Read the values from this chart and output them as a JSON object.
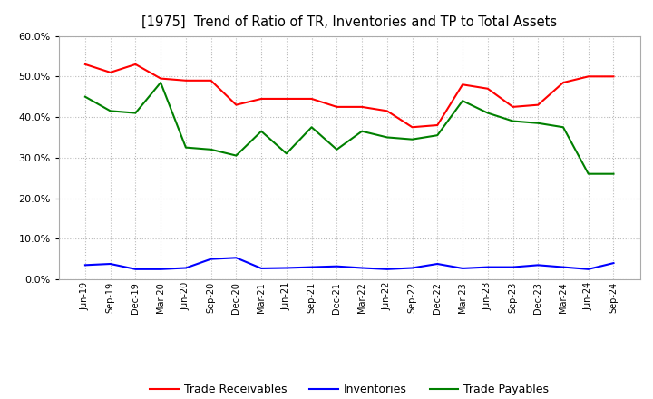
{
  "title": "[1975]  Trend of Ratio of TR, Inventories and TP to Total Assets",
  "x_labels": [
    "Jun-19",
    "Sep-19",
    "Dec-19",
    "Mar-20",
    "Jun-20",
    "Sep-20",
    "Dec-20",
    "Mar-21",
    "Jun-21",
    "Sep-21",
    "Dec-21",
    "Mar-22",
    "Jun-22",
    "Sep-22",
    "Dec-22",
    "Mar-23",
    "Jun-23",
    "Sep-23",
    "Dec-23",
    "Mar-24",
    "Jun-24",
    "Sep-24"
  ],
  "trade_receivables": [
    0.53,
    0.51,
    0.53,
    0.495,
    0.49,
    0.49,
    0.43,
    0.445,
    0.445,
    0.445,
    0.425,
    0.425,
    0.415,
    0.375,
    0.38,
    0.48,
    0.47,
    0.425,
    0.43,
    0.485,
    0.5,
    0.5
  ],
  "inventories": [
    0.035,
    0.038,
    0.025,
    0.025,
    0.028,
    0.05,
    0.053,
    0.027,
    0.028,
    0.03,
    0.032,
    0.028,
    0.025,
    0.028,
    0.038,
    0.027,
    0.03,
    0.03,
    0.035,
    0.03,
    0.025,
    0.04
  ],
  "trade_payables": [
    0.45,
    0.415,
    0.41,
    0.485,
    0.325,
    0.32,
    0.305,
    0.365,
    0.31,
    0.375,
    0.32,
    0.365,
    0.35,
    0.345,
    0.355,
    0.44,
    0.41,
    0.39,
    0.385,
    0.375,
    0.26,
    0.26
  ],
  "tr_color": "#ff0000",
  "inv_color": "#0000ff",
  "tp_color": "#008000",
  "ylim": [
    0.0,
    0.6
  ],
  "yticks": [
    0.0,
    0.1,
    0.2,
    0.3,
    0.4,
    0.5,
    0.6
  ],
  "legend_labels": [
    "Trade Receivables",
    "Inventories",
    "Trade Payables"
  ],
  "bg_color": "#ffffff",
  "grid_color": "#bbbbbb"
}
